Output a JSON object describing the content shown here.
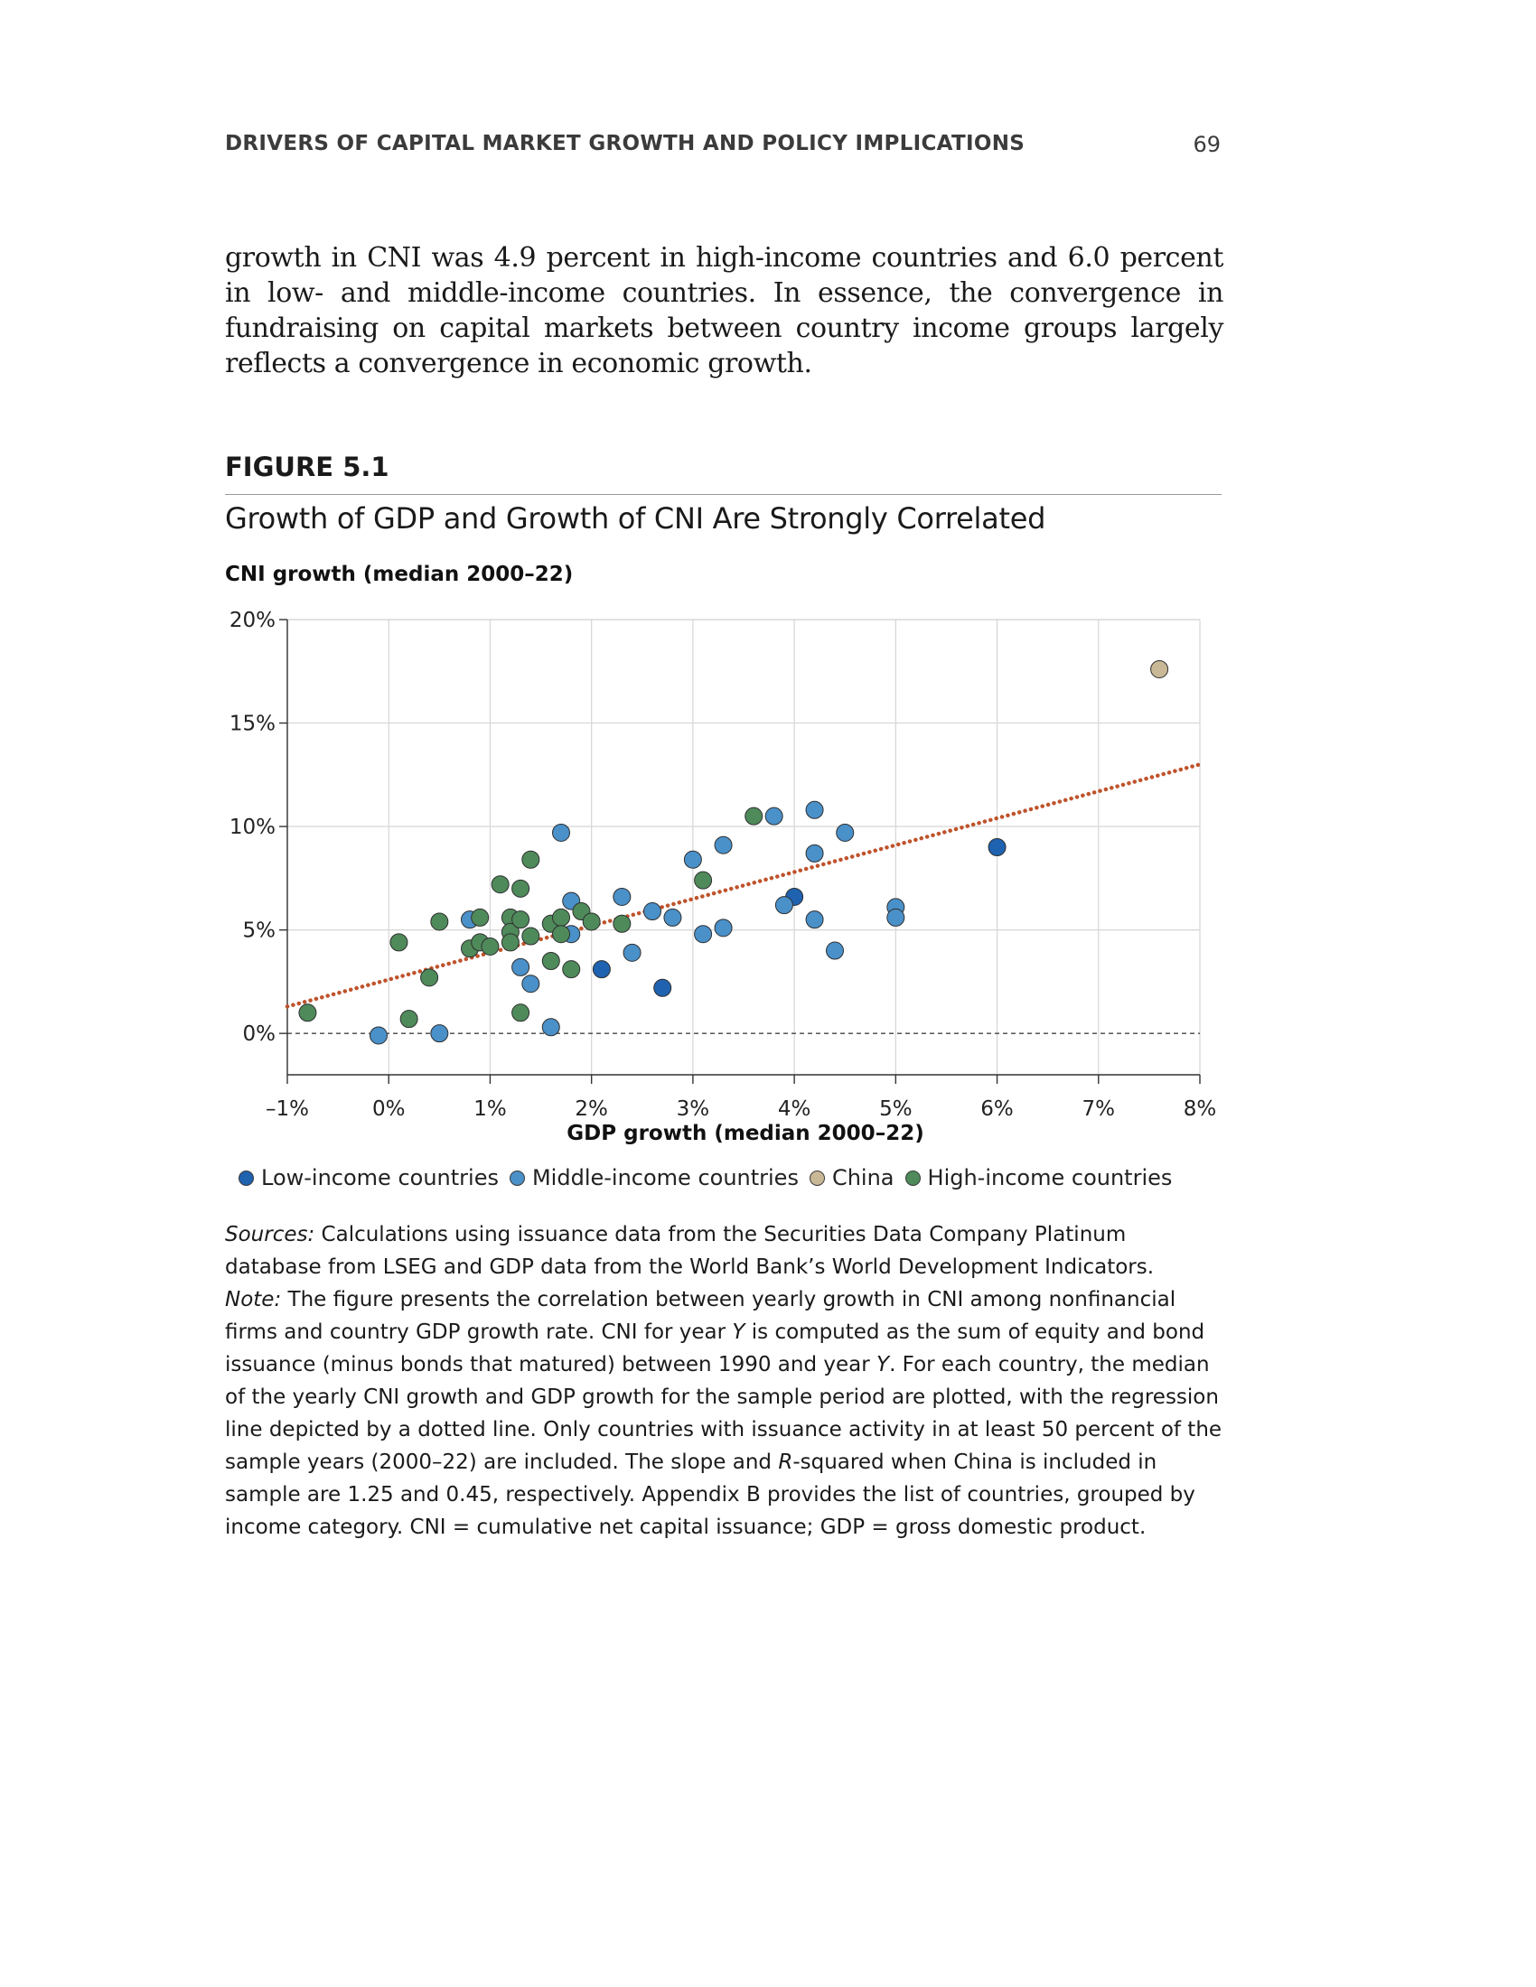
{
  "page": {
    "running_head": "DRIVERS OF CAPITAL MARKET GROWTH AND POLICY IMPLICATIONS",
    "page_number": "69",
    "body_text": "growth in CNI was 4.9 percent in high-income countries and 6.0 percent in low- and middle-income countries. In essence, the convergence in fundraising on capital markets between country income groups largely reflects a convergence in economic growth."
  },
  "figure": {
    "label": "FIGURE 5.1",
    "title": "Growth of GDP and Growth of CNI Are Strongly Correlated"
  },
  "chart_data": {
    "type": "scatter",
    "ylabel": "CNI growth (median 2000–22)",
    "xlabel": "GDP growth (median 2000–22)",
    "xlim": [
      -1,
      8
    ],
    "ylim": [
      -2,
      20
    ],
    "x_ticks": [
      -1,
      0,
      1,
      2,
      3,
      4,
      5,
      6,
      7,
      8
    ],
    "x_tick_labels": [
      "–1%",
      "0%",
      "1%",
      "2%",
      "3%",
      "4%",
      "5%",
      "6%",
      "7%",
      "8%"
    ],
    "y_ticks": [
      0,
      5,
      10,
      15,
      20
    ],
    "y_tick_labels": [
      "0%",
      "5%",
      "10%",
      "15%",
      "20%"
    ],
    "grid": true,
    "zero_line": "dashed",
    "regression_line": {
      "x": [
        -1,
        8
      ],
      "y": [
        1.3,
        13.0
      ],
      "style": "dotted",
      "color": "#c0532b"
    },
    "legend_position": "bottom",
    "series": [
      {
        "name": "Low-income countries",
        "color": "#1f62b0",
        "points": [
          [
            2.1,
            3.1
          ],
          [
            2.7,
            2.2
          ],
          [
            4.0,
            6.6
          ],
          [
            6.0,
            9.0
          ]
        ]
      },
      {
        "name": "Middle-income countries",
        "color": "#4a90c9",
        "points": [
          [
            -0.1,
            -0.1
          ],
          [
            0.5,
            0.0
          ],
          [
            0.8,
            5.5
          ],
          [
            1.3,
            3.2
          ],
          [
            1.4,
            2.4
          ],
          [
            1.6,
            0.3
          ],
          [
            1.7,
            9.7
          ],
          [
            1.8,
            6.4
          ],
          [
            1.8,
            4.8
          ],
          [
            2.3,
            6.6
          ],
          [
            2.4,
            3.9
          ],
          [
            2.6,
            5.9
          ],
          [
            2.8,
            5.6
          ],
          [
            3.0,
            8.4
          ],
          [
            3.1,
            4.8
          ],
          [
            3.3,
            9.1
          ],
          [
            3.3,
            5.1
          ],
          [
            3.8,
            10.5
          ],
          [
            3.9,
            6.2
          ],
          [
            4.2,
            10.8
          ],
          [
            4.2,
            8.7
          ],
          [
            4.2,
            5.5
          ],
          [
            4.4,
            4.0
          ],
          [
            4.5,
            9.7
          ],
          [
            5.0,
            6.1
          ],
          [
            5.0,
            5.6
          ]
        ]
      },
      {
        "name": "China",
        "color": "#c8b896",
        "points": [
          [
            7.6,
            17.6
          ]
        ]
      },
      {
        "name": "High-income countries",
        "color": "#4f8a5a",
        "points": [
          [
            -0.8,
            1.0
          ],
          [
            0.1,
            4.4
          ],
          [
            0.2,
            0.7
          ],
          [
            0.4,
            2.7
          ],
          [
            0.5,
            5.4
          ],
          [
            0.8,
            4.1
          ],
          [
            0.9,
            5.6
          ],
          [
            0.9,
            4.4
          ],
          [
            1.0,
            4.2
          ],
          [
            1.1,
            7.2
          ],
          [
            1.2,
            5.6
          ],
          [
            1.2,
            4.9
          ],
          [
            1.2,
            4.4
          ],
          [
            1.3,
            7.0
          ],
          [
            1.3,
            5.5
          ],
          [
            1.3,
            1.0
          ],
          [
            1.4,
            8.4
          ],
          [
            1.4,
            4.7
          ],
          [
            1.6,
            5.3
          ],
          [
            1.6,
            3.5
          ],
          [
            1.7,
            5.6
          ],
          [
            1.7,
            4.8
          ],
          [
            1.8,
            3.1
          ],
          [
            1.9,
            5.9
          ],
          [
            2.0,
            5.4
          ],
          [
            2.3,
            5.3
          ],
          [
            3.1,
            7.4
          ],
          [
            3.6,
            10.5
          ]
        ]
      }
    ]
  },
  "legend": {
    "items": [
      {
        "label": "Low-income countries",
        "color": "#1f62b0"
      },
      {
        "label": "Middle-income countries",
        "color": "#4a90c9"
      },
      {
        "label": "China",
        "color": "#c8b896"
      },
      {
        "label": "High-income countries",
        "color": "#4f8a5a"
      }
    ]
  },
  "notes": {
    "sources_lead": "Sources:",
    "sources_text": " Calculations using issuance data from the Securities Data Company Platinum database from LSEG and GDP data from the World Bank’s World Development Indicators.",
    "note_lead": "Note:",
    "note_text_1": " The figure presents the correlation between yearly growth in CNI among nonfinancial firms and country GDP growth rate. CNI for year ",
    "note_var_y1": "Y",
    "note_text_2": " is computed as the sum of equity and bond issuance (minus bonds that matured) between 1990 and year ",
    "note_var_y2": "Y",
    "note_text_3": ". For each country, the median of the yearly CNI growth and GDP growth for the sample period are plotted, with the regression line depicted by a dotted line. Only countries with issuance activity in at least 50 percent of the sample years (2000–22) are included. The slope and ",
    "note_var_r": "R",
    "note_text_4": "-squared when China is included in sample are 1.25 and 0.45, respectively. Appendix B provides the list of countries, grouped by income category. CNI = cumulative net capital issuance; GDP = gross domestic product."
  }
}
